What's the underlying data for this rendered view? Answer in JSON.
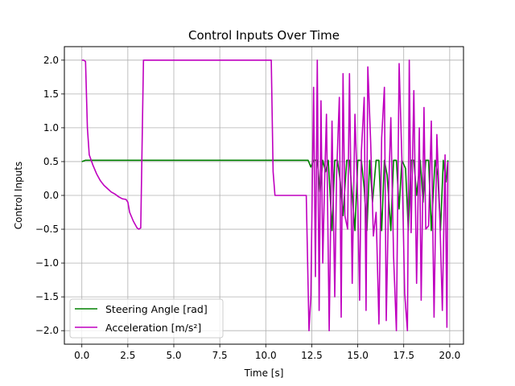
{
  "chart_data": {
    "type": "line",
    "title": "Control Inputs Over Time",
    "xlabel": "Time [s]",
    "ylabel": "Control Inputs",
    "xlim": [
      -0.95,
      20.75
    ],
    "ylim": [
      -2.2,
      2.2
    ],
    "xticks": [
      0.0,
      2.5,
      5.0,
      7.5,
      10.0,
      12.5,
      15.0,
      17.5,
      20.0
    ],
    "xtick_labels": [
      "0.0",
      "2.5",
      "5.0",
      "7.5",
      "10.0",
      "12.5",
      "15.0",
      "17.5",
      "20.0"
    ],
    "yticks": [
      -2.0,
      -1.5,
      -1.0,
      -0.5,
      0.0,
      0.5,
      1.0,
      1.5,
      2.0
    ],
    "ytick_labels": [
      "−2.0",
      "−1.5",
      "−1.0",
      "−0.5",
      "0.0",
      "0.5",
      "1.0",
      "1.5",
      "2.0"
    ],
    "grid": true,
    "legend_position": "lower-left",
    "series": [
      {
        "name": "Steering Angle [rad]",
        "color": "#008000",
        "x": [
          0.0,
          0.2,
          0.4,
          1.0,
          2.0,
          3.0,
          4.0,
          5.0,
          6.0,
          7.0,
          8.0,
          9.0,
          10.0,
          11.0,
          12.0,
          12.3,
          12.45,
          12.6,
          12.8,
          12.95,
          13.1,
          13.25,
          13.4,
          13.6,
          13.75,
          13.9,
          14.05,
          14.2,
          14.4,
          14.55,
          14.7,
          14.85,
          15.0,
          15.2,
          15.35,
          15.5,
          15.65,
          15.8,
          16.0,
          16.15,
          16.3,
          16.45,
          16.6,
          16.8,
          16.95,
          17.1,
          17.25,
          17.4,
          17.6,
          17.75,
          17.9,
          18.05,
          18.2,
          18.4,
          18.55,
          18.7,
          18.85,
          19.0,
          19.2,
          19.35,
          19.5,
          19.65,
          19.8,
          19.9
        ],
        "values": [
          0.5,
          0.52,
          0.52,
          0.52,
          0.52,
          0.52,
          0.52,
          0.52,
          0.52,
          0.52,
          0.52,
          0.52,
          0.52,
          0.52,
          0.52,
          0.52,
          0.42,
          0.52,
          0.52,
          0.05,
          0.52,
          0.35,
          0.52,
          -0.52,
          0.52,
          0.52,
          0.2,
          -0.3,
          0.52,
          0.52,
          0.0,
          -0.52,
          0.52,
          0.52,
          0.1,
          -0.52,
          0.52,
          -0.1,
          0.52,
          0.52,
          -0.52,
          0.52,
          0.3,
          -0.52,
          0.52,
          0.52,
          -0.2,
          0.52,
          0.4,
          -0.52,
          0.52,
          0.52,
          0.0,
          0.52,
          -0.1,
          0.52,
          0.52,
          -0.52,
          0.52,
          0.3,
          -0.52,
          0.52,
          0.2,
          0.52
        ]
      },
      {
        "name": "Acceleration [m/s²]",
        "color": "#bf00bf",
        "x": [
          0.0,
          0.1,
          0.2,
          0.3,
          0.4,
          0.6,
          0.8,
          1.0,
          1.2,
          1.4,
          1.6,
          1.8,
          2.0,
          2.2,
          2.4,
          2.5,
          2.6,
          2.8,
          3.0,
          3.1,
          3.2,
          3.35,
          3.5,
          4.0,
          6.0,
          8.0,
          10.0,
          10.3,
          10.4,
          10.5,
          11.0,
          11.5,
          12.0,
          12.2,
          12.35,
          12.45,
          12.6,
          12.7,
          12.8,
          12.9,
          13.0,
          13.1,
          13.2,
          13.3,
          13.45,
          13.6,
          13.75,
          13.85,
          14.0,
          14.1,
          14.2,
          14.3,
          14.45,
          14.55,
          14.7,
          14.85,
          15.0,
          15.1,
          15.2,
          15.35,
          15.45,
          15.55,
          15.7,
          15.85,
          16.0,
          16.15,
          16.3,
          16.45,
          16.55,
          16.7,
          16.8,
          16.95,
          17.1,
          17.25,
          17.4,
          17.55,
          17.7,
          17.8,
          17.9,
          18.05,
          18.2,
          18.35,
          18.45,
          18.6,
          18.7,
          18.85,
          19.0,
          19.15,
          19.3,
          19.45,
          19.6,
          19.75,
          19.85,
          19.9
        ],
        "values": [
          2.0,
          2.0,
          1.98,
          1.0,
          0.6,
          0.45,
          0.32,
          0.22,
          0.15,
          0.1,
          0.05,
          0.02,
          -0.02,
          -0.05,
          -0.06,
          -0.1,
          -0.25,
          -0.38,
          -0.48,
          -0.5,
          -0.48,
          2.0,
          2.0,
          2.0,
          2.0,
          2.0,
          2.0,
          2.0,
          0.35,
          0.0,
          0.0,
          0.0,
          0.0,
          0.0,
          -2.0,
          -1.5,
          1.6,
          -1.2,
          2.0,
          -1.7,
          1.4,
          -1.0,
          0.2,
          1.2,
          -2.0,
          1.1,
          -1.5,
          0.3,
          1.45,
          -1.8,
          1.8,
          -0.3,
          -0.5,
          1.8,
          -1.3,
          1.2,
          -0.1,
          -1.55,
          0.65,
          1.45,
          -1.7,
          1.9,
          0.8,
          -0.6,
          -0.25,
          -1.9,
          0.85,
          1.6,
          -1.85,
          0.25,
          1.15,
          -0.9,
          -2.0,
          1.95,
          0.55,
          -1.45,
          -2.0,
          2.0,
          -0.55,
          1.55,
          -1.3,
          1.0,
          -1.55,
          1.3,
          -0.5,
          -0.45,
          1.1,
          -1.8,
          0.9,
          -0.2,
          -1.7,
          0.6,
          -1.95,
          0.5
        ]
      }
    ]
  }
}
